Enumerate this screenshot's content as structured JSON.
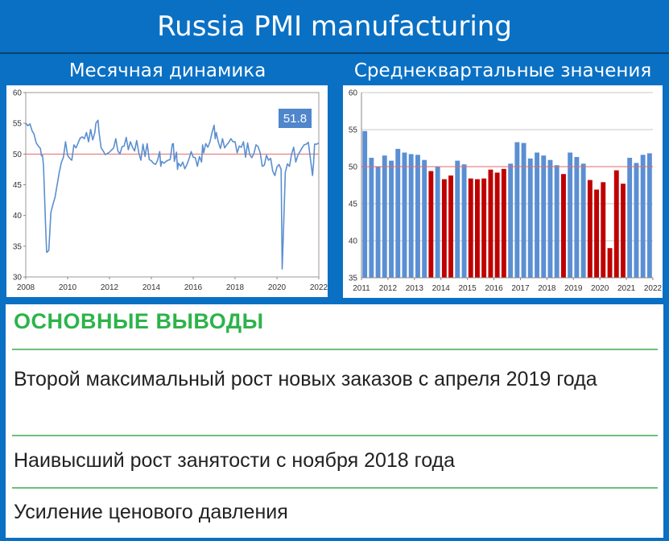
{
  "header": {
    "title": "Russia PMI manufacturing"
  },
  "left_panel": {
    "subtitle": "Месячная динамика",
    "callout": "51.8"
  },
  "right_panel": {
    "subtitle": "Среднеквартальные значения"
  },
  "conclusions": {
    "heading": "ОСНОВНЫЕ ВЫВОДЫ",
    "items": [
      "Второй максимальный рост новых заказов с апреля 2019 года",
      "Наивысший рост занятости с ноября 2018 года",
      "Усиление ценового давления"
    ]
  },
  "colors": {
    "line": "#5b8fcf",
    "reference": "#e06a6a",
    "bar_expansion": "#5b8fd3",
    "bar_contraction": "#c00000",
    "heading": "#2db34a",
    "background": "#0a70c4"
  },
  "chart_data": [
    {
      "type": "line",
      "xlim": [
        2008,
        2022
      ],
      "ylim": [
        30,
        60
      ],
      "x_ticks": [
        "2008",
        "2010",
        "2012",
        "2014",
        "2016",
        "2018",
        "2020",
        "2022"
      ],
      "y_ticks": [
        "30",
        "35",
        "40",
        "45",
        "50",
        "55",
        "60"
      ],
      "reference_line": 50,
      "grid": false,
      "series": [
        {
          "points": [
            [
              2008.0,
              55.0
            ],
            [
              2008.1,
              54.6
            ],
            [
              2008.2,
              54.9
            ],
            [
              2008.3,
              53.8
            ],
            [
              2008.4,
              53.2
            ],
            [
              2008.5,
              51.8
            ],
            [
              2008.6,
              51.3
            ],
            [
              2008.7,
              50.9
            ],
            [
              2008.75,
              49.7
            ],
            [
              2008.8,
              49.8
            ],
            [
              2008.85,
              48.0
            ],
            [
              2008.9,
              43.0
            ],
            [
              2008.95,
              38.0
            ],
            [
              2009.0,
              34.0
            ],
            [
              2009.1,
              34.3
            ],
            [
              2009.2,
              40.5
            ],
            [
              2009.3,
              41.8
            ],
            [
              2009.4,
              43.0
            ],
            [
              2009.5,
              45.0
            ],
            [
              2009.6,
              47.0
            ],
            [
              2009.7,
              48.6
            ],
            [
              2009.8,
              49.5
            ],
            [
              2009.9,
              52.0
            ],
            [
              2010.0,
              49.8
            ],
            [
              2010.1,
              49.3
            ],
            [
              2010.2,
              49.0
            ],
            [
              2010.3,
              51.5
            ],
            [
              2010.4,
              51.0
            ],
            [
              2010.5,
              51.8
            ],
            [
              2010.6,
              52.6
            ],
            [
              2010.7,
              52.8
            ],
            [
              2010.8,
              52.5
            ],
            [
              2010.9,
              53.5
            ],
            [
              2011.0,
              52.0
            ],
            [
              2011.1,
              54.0
            ],
            [
              2011.2,
              52.3
            ],
            [
              2011.3,
              53.5
            ],
            [
              2011.35,
              55.0
            ],
            [
              2011.45,
              55.5
            ],
            [
              2011.5,
              53.6
            ],
            [
              2011.6,
              51.0
            ],
            [
              2011.7,
              50.5
            ],
            [
              2011.8,
              49.9
            ],
            [
              2012.0,
              50.3
            ],
            [
              2012.2,
              51.0
            ],
            [
              2012.3,
              52.5
            ],
            [
              2012.4,
              50.5
            ],
            [
              2012.5,
              50.0
            ],
            [
              2012.6,
              51.2
            ],
            [
              2012.7,
              51.3
            ],
            [
              2012.8,
              52.7
            ],
            [
              2012.9,
              50.7
            ],
            [
              2013.0,
              52.0
            ],
            [
              2013.1,
              51.1
            ],
            [
              2013.2,
              50.5
            ],
            [
              2013.3,
              52.2
            ],
            [
              2013.4,
              50.2
            ],
            [
              2013.5,
              49.0
            ],
            [
              2013.6,
              51.6
            ],
            [
              2013.7,
              49.6
            ],
            [
              2013.8,
              51.7
            ],
            [
              2013.9,
              49.1
            ],
            [
              2014.0,
              48.9
            ],
            [
              2014.1,
              48.5
            ],
            [
              2014.2,
              48.3
            ],
            [
              2014.3,
              49.0
            ],
            [
              2014.4,
              50.4
            ],
            [
              2014.45,
              48.0
            ],
            [
              2014.5,
              48.8
            ],
            [
              2014.6,
              48.5
            ],
            [
              2014.7,
              48.8
            ],
            [
              2014.8,
              49.0
            ],
            [
              2014.9,
              49.1
            ],
            [
              2015.0,
              51.6
            ],
            [
              2015.05,
              51.7
            ],
            [
              2015.1,
              48.8
            ],
            [
              2015.2,
              50.3
            ],
            [
              2015.25,
              47.5
            ],
            [
              2015.3,
              48.5
            ],
            [
              2015.4,
              48.0
            ],
            [
              2015.5,
              48.7
            ],
            [
              2015.6,
              47.6
            ],
            [
              2015.7,
              48.3
            ],
            [
              2015.8,
              49.2
            ],
            [
              2015.9,
              50.4
            ],
            [
              2016.0,
              49.5
            ],
            [
              2016.1,
              49.4
            ],
            [
              2016.2,
              48.0
            ],
            [
              2016.3,
              49.6
            ],
            [
              2016.4,
              48.7
            ],
            [
              2016.45,
              51.5
            ],
            [
              2016.5,
              50.2
            ],
            [
              2016.6,
              51.7
            ],
            [
              2016.7,
              51.1
            ],
            [
              2016.8,
              52.0
            ],
            [
              2016.9,
              53.5
            ],
            [
              2017.0,
              54.7
            ],
            [
              2017.05,
              52.5
            ],
            [
              2017.1,
              53.5
            ],
            [
              2017.2,
              51.9
            ],
            [
              2017.3,
              50.9
            ],
            [
              2017.4,
              52.5
            ],
            [
              2017.5,
              51.0
            ],
            [
              2017.6,
              51.5
            ],
            [
              2017.7,
              51.9
            ],
            [
              2017.8,
              52.5
            ],
            [
              2017.9,
              52.0
            ],
            [
              2018.0,
              52.0
            ],
            [
              2018.1,
              50.2
            ],
            [
              2018.2,
              51.3
            ],
            [
              2018.3,
              51.1
            ],
            [
              2018.4,
              52.0
            ],
            [
              2018.5,
              49.5
            ],
            [
              2018.6,
              51.8
            ],
            [
              2018.7,
              49.9
            ],
            [
              2018.8,
              49.4
            ],
            [
              2018.9,
              50.1
            ],
            [
              2019.0,
              51.5
            ],
            [
              2019.1,
              51.2
            ],
            [
              2019.2,
              50.2
            ],
            [
              2019.3,
              48.0
            ],
            [
              2019.4,
              48.2
            ],
            [
              2019.5,
              49.8
            ],
            [
              2019.6,
              49.0
            ],
            [
              2019.7,
              49.3
            ],
            [
              2019.8,
              47.2
            ],
            [
              2019.9,
              46.5
            ],
            [
              2020.0,
              47.9
            ],
            [
              2020.1,
              48.3
            ],
            [
              2020.2,
              47.5
            ],
            [
              2020.25,
              31.3
            ],
            [
              2020.3,
              36.2
            ],
            [
              2020.4,
              47.0
            ],
            [
              2020.5,
              48.4
            ],
            [
              2020.6,
              48.0
            ],
            [
              2020.7,
              50.0
            ],
            [
              2020.8,
              51.1
            ],
            [
              2020.9,
              48.7
            ],
            [
              2021.0,
              49.8
            ],
            [
              2021.1,
              50.4
            ],
            [
              2021.2,
              51.0
            ],
            [
              2021.3,
              51.5
            ],
            [
              2021.4,
              51.6
            ],
            [
              2021.5,
              51.9
            ],
            [
              2021.6,
              49.2
            ],
            [
              2021.7,
              46.5
            ],
            [
              2021.75,
              48.5
            ],
            [
              2021.8,
              51.6
            ],
            [
              2021.9,
              51.6
            ],
            [
              2022.0,
              51.8
            ]
          ]
        }
      ]
    },
    {
      "type": "bar",
      "xlim": [
        2011,
        2022
      ],
      "ylim": [
        35,
        60
      ],
      "x_ticks": [
        "2011",
        "2012",
        "2013",
        "2014",
        "2015",
        "2016",
        "2017",
        "2018",
        "2019",
        "2020",
        "2021",
        "2022"
      ],
      "y_ticks": [
        "35",
        "40",
        "45",
        "50",
        "55",
        "60"
      ],
      "reference_line": 50,
      "grid": true,
      "values": [
        54.8,
        51.2,
        50.0,
        51.5,
        50.8,
        52.4,
        51.9,
        51.7,
        51.6,
        50.9,
        49.4,
        50.0,
        48.3,
        48.8,
        50.8,
        50.3,
        48.4,
        48.3,
        48.4,
        49.6,
        49.2,
        49.7,
        50.4,
        53.3,
        53.2,
        51.1,
        51.9,
        51.5,
        50.9,
        50.2,
        49.0,
        51.9,
        51.3,
        50.4,
        48.2,
        46.9,
        47.9,
        39.0,
        49.5,
        47.7,
        51.2,
        50.5,
        51.6,
        51.8
      ]
    }
  ]
}
